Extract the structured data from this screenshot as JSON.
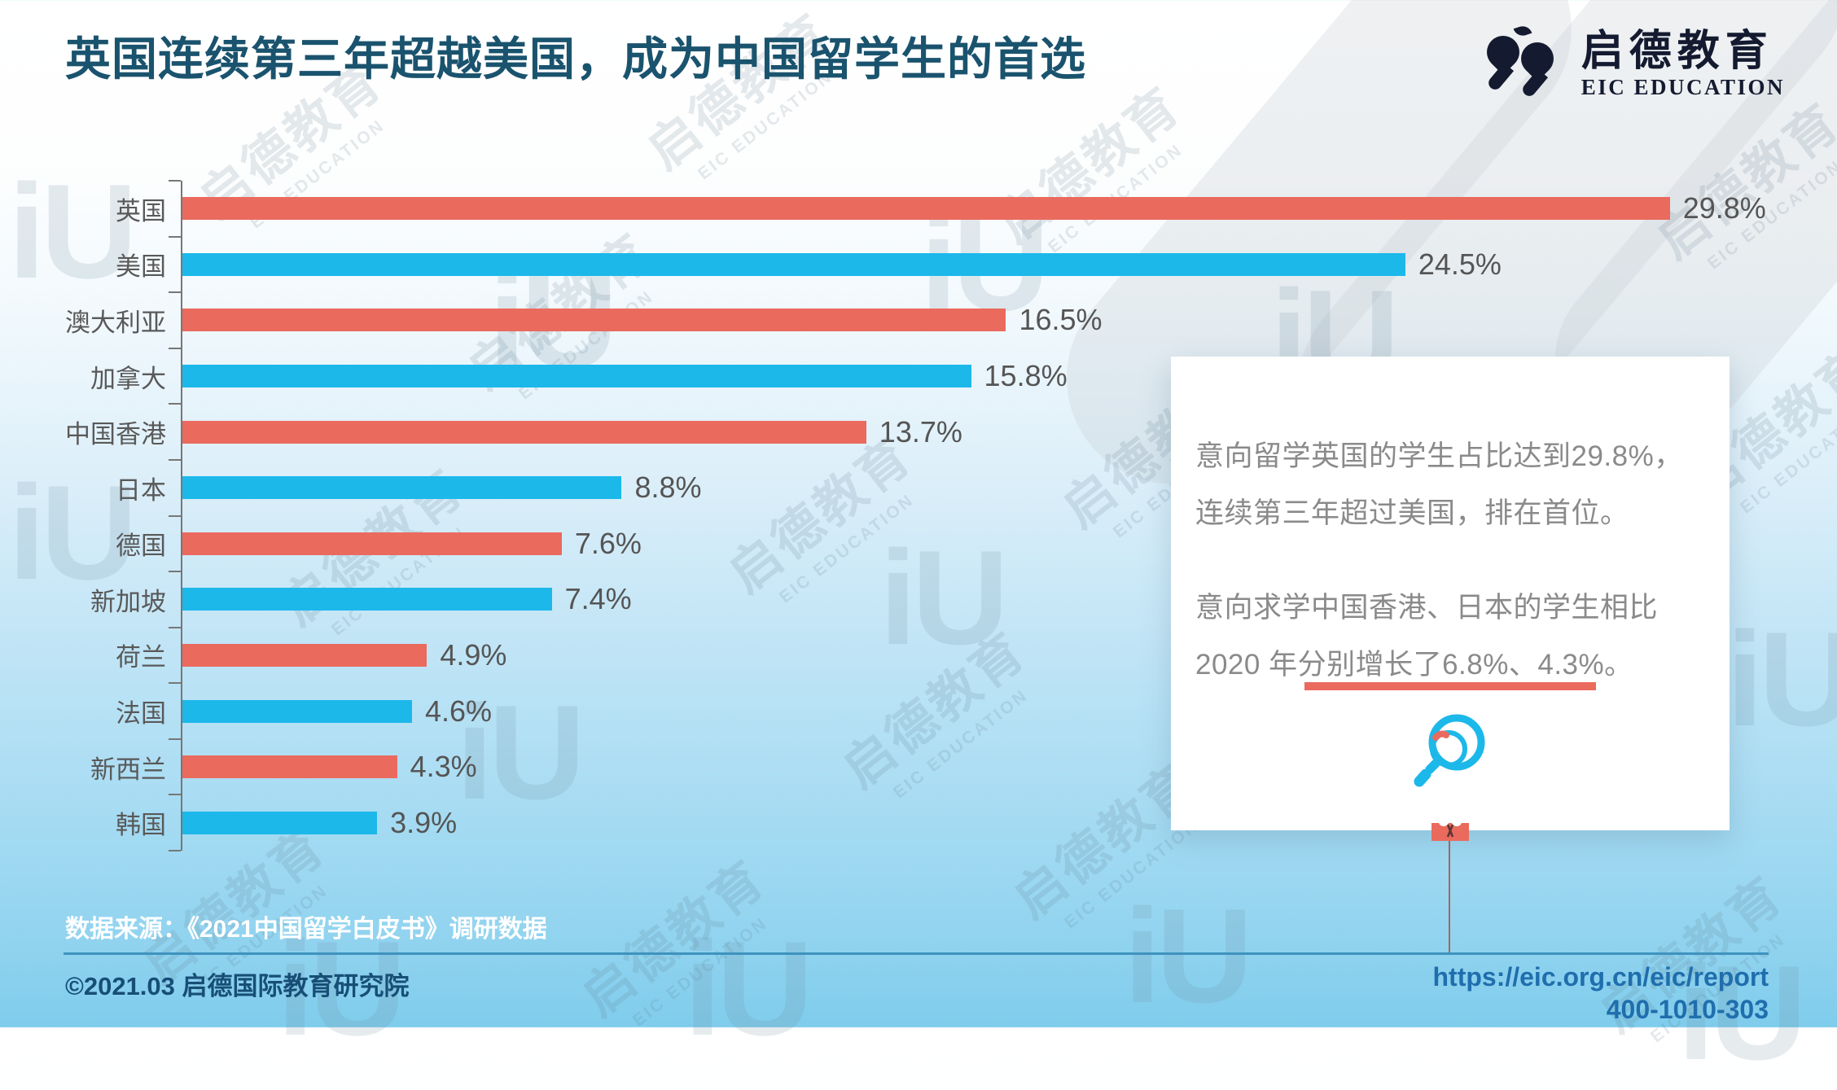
{
  "title": "英国连续第三年超越美国，成为中国留学生的首选",
  "logo": {
    "cn": "启德教育",
    "en": "EIC EDUCATION"
  },
  "chart_data": {
    "type": "bar",
    "orientation": "horizontal",
    "title": "",
    "xlabel": "",
    "ylabel": "",
    "grid": false,
    "legend": "none",
    "xlim": [
      0,
      31
    ],
    "categories": [
      "英国",
      "美国",
      "澳大利亚",
      "加拿大",
      "中国香港",
      "日本",
      "德国",
      "新加坡",
      "荷兰",
      "法国",
      "新西兰",
      "韩国"
    ],
    "values": [
      29.8,
      24.5,
      16.5,
      15.8,
      13.7,
      8.8,
      7.6,
      7.4,
      4.9,
      4.6,
      4.3,
      3.9
    ],
    "value_labels": [
      "29.8%",
      "24.5%",
      "16.5%",
      "15.8%",
      "13.7%",
      "8.8%",
      "7.6%",
      "7.4%",
      "4.9%",
      "4.6%",
      "4.3%",
      "3.9%"
    ],
    "bar_colors_alternating": [
      "#EA6A5E",
      "#1CB8EA"
    ]
  },
  "callout": {
    "p1": "意向留学英国的学生占比达到29.8%，连续第三年超过美国，排在首位。",
    "p2": "意向求学中国香港、日本的学生相比 2020 年分别增长了6.8%、4.3%。"
  },
  "footer": {
    "source": "数据来源：《2021中国留学白皮书》调研数据",
    "copyright": "©2021.03 启德国际教育研究院",
    "url": "https://eic.org.cn/eic/report",
    "phone": "400-1010-303"
  },
  "watermark": {
    "cn": "启德教育",
    "en": "EIC EDUCATION",
    "glyph": "iU"
  },
  "colors": {
    "bar_red": "#EA6A5E",
    "bar_blue": "#1CB8EA",
    "title": "#1A536E",
    "axis": "#777777",
    "card_text": "#8a8a8a",
    "divider": "#3E93BF",
    "link": "#1F6EAD"
  }
}
